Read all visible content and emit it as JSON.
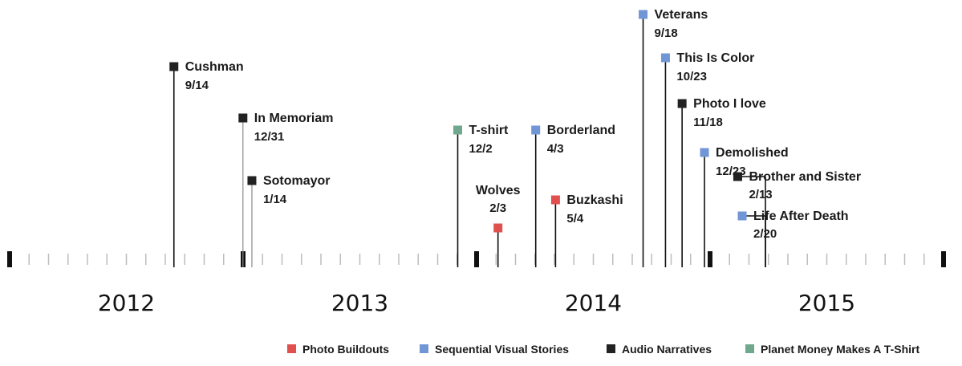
{
  "chart_data": {
    "type": "timeline",
    "x_range": [
      "2012-01-01",
      "2015-12-31"
    ],
    "years": [
      "2012",
      "2013",
      "2014",
      "2015"
    ],
    "series": [
      {
        "key": "photo",
        "name": "Photo Buildouts",
        "color": "#e0504f"
      },
      {
        "key": "sequential",
        "name": "Sequential Visual Stories",
        "color": "#7196d6"
      },
      {
        "key": "audio",
        "name": "Audio Narratives",
        "color": "#222222"
      },
      {
        "key": "tshirt",
        "name": "Planet Money Makes A T-Shirt",
        "color": "#6fa88e"
      }
    ],
    "events": [
      {
        "title": "Cushman",
        "label": "9/14",
        "date": "2012-09-14",
        "series": "audio"
      },
      {
        "title": "In Memoriam",
        "label": "12/31",
        "date": "2012-12-31",
        "series": "audio"
      },
      {
        "title": "Sotomayor",
        "label": "1/14",
        "date": "2013-01-14",
        "series": "audio"
      },
      {
        "title": "T-shirt",
        "label": "12/2",
        "date": "2013-12-02",
        "series": "tshirt"
      },
      {
        "title": "Wolves",
        "label": "2/3",
        "date": "2014-02-03",
        "series": "photo"
      },
      {
        "title": "Borderland",
        "label": "4/3",
        "date": "2014-04-03",
        "series": "sequential"
      },
      {
        "title": "Buzkashi",
        "label": "5/4",
        "date": "2014-05-04",
        "series": "photo"
      },
      {
        "title": "Veterans",
        "label": "9/18",
        "date": "2014-09-18",
        "series": "sequential"
      },
      {
        "title": "This Is Color",
        "label": "10/23",
        "date": "2014-10-23",
        "series": "sequential"
      },
      {
        "title": "Photo I love",
        "label": "11/18",
        "date": "2014-11-18",
        "series": "audio"
      },
      {
        "title": "Demolished",
        "label": "12/23",
        "date": "2014-12-23",
        "series": "sequential"
      },
      {
        "title": "Brother and Sister",
        "label": "2/13",
        "date": "2015-02-13",
        "series": "audio"
      },
      {
        "title": "Life After Death",
        "label": "2/20",
        "date": "2015-02-20",
        "series": "sequential"
      }
    ],
    "legend_position": "bottom-right"
  }
}
